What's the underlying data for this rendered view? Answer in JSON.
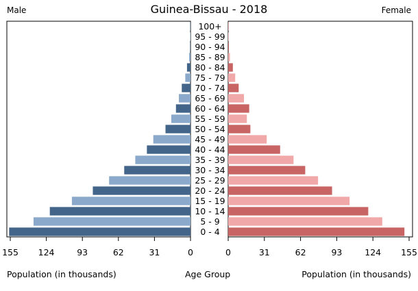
{
  "chart_data": {
    "type": "bar",
    "title": "Guinea-Bissau - 2018",
    "left_label": "Male",
    "right_label": "Female",
    "xlabel_left": "Population (in thousands)",
    "xlabel_center": "Age Group",
    "xlabel_right": "Population (in thousands)",
    "xlim": [
      0,
      155
    ],
    "ticks_left": [
      "155",
      "124",
      "93",
      "62",
      "31",
      "0"
    ],
    "ticks_right": [
      "0",
      "31",
      "62",
      "93",
      "124",
      "155"
    ],
    "tick_values_left": [
      155,
      124,
      93,
      62,
      31,
      0
    ],
    "tick_values_right": [
      0,
      31,
      62,
      93,
      124,
      155
    ],
    "categories": [
      "100+",
      "95 - 99",
      "90 - 94",
      "85 - 89",
      "80 - 84",
      "75 - 79",
      "70 - 74",
      "65 - 69",
      "60 - 64",
      "55 - 59",
      "50 - 54",
      "45 - 49",
      "40 - 44",
      "35 - 39",
      "30 - 34",
      "25 - 29",
      "20 - 24",
      "15 - 19",
      "10 - 14",
      "5 - 9",
      "0 - 4"
    ],
    "series": [
      {
        "name": "Male",
        "values": [
          0.1,
          0.2,
          0.4,
          1.2,
          3,
          4.5,
          7.5,
          10,
          12.5,
          16.5,
          21.5,
          32,
          37.5,
          47.5,
          57,
          70,
          84,
          102,
          121,
          135,
          156
        ]
      },
      {
        "name": "Female",
        "values": [
          0.1,
          0.3,
          0.6,
          1.5,
          4,
          6,
          9,
          13.5,
          18,
          16,
          19,
          33,
          44.5,
          56,
          66,
          77,
          89,
          104,
          120,
          132,
          151
        ]
      }
    ],
    "colors": {
      "male_dark": "#43658a",
      "male_light": "#8aa9cb",
      "female_dark": "#c86464",
      "female_light": "#f0a8a8"
    }
  }
}
